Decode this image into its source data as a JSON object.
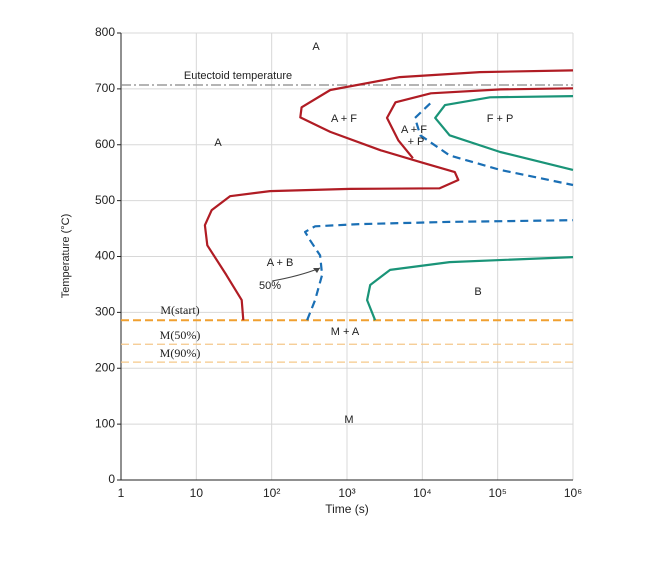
{
  "chart_data": {
    "type": "line",
    "x_scale": "log",
    "grid": true,
    "xlabel": "Time (s)",
    "ylabel": "Temperature (°C)",
    "xlim": [
      1,
      1000000
    ],
    "ylim": [
      0,
      800
    ],
    "xticks": [
      1,
      10,
      {
        "value": 100,
        "label": "10²"
      },
      {
        "value": 1000,
        "label": "10³"
      },
      {
        "value": 10000,
        "label": "10⁴"
      },
      {
        "value": 100000,
        "label": "10⁵"
      },
      {
        "value": 1000000,
        "label": "10⁶"
      }
    ],
    "yticks": [
      0,
      100,
      200,
      300,
      400,
      500,
      600,
      700,
      800
    ],
    "series": [
      {
        "color": "#b01c24",
        "dashed": false,
        "x": [
          42,
          40,
          25,
          14,
          13,
          16,
          28,
          95,
          1100,
          17000,
          30000,
          27000,
          9400,
          2800,
          600,
          240,
          250,
          600,
          5000,
          58000,
          1000000
        ],
        "y": [
          286,
          322,
          367,
          420,
          456,
          483,
          508,
          517,
          521,
          522,
          537,
          551,
          569,
          590,
          623,
          649,
          667,
          698,
          721,
          730,
          733
        ]
      },
      {
        "color": "#b01c24",
        "dashed": false,
        "x": [
          7500,
          4800,
          3400,
          4400,
          13000,
          110000,
          1000000
        ],
        "y": [
          576,
          608,
          648,
          676,
          692,
          699,
          701
        ]
      },
      {
        "color": "#1a6fb5",
        "dashed": true,
        "x": [
          12700,
          8000,
          9400,
          23000,
          108000,
          1000000
        ],
        "y": [
          674,
          648,
          617,
          581,
          555,
          528
        ]
      },
      {
        "color": "#1a6fb5",
        "dashed": true,
        "x": [
          295,
          377,
          467,
          440,
          324,
          278,
          377,
          1490,
          23000,
          1000000
        ],
        "y": [
          286,
          322,
          367,
          402,
          429,
          444,
          454,
          458,
          462,
          465
        ]
      },
      {
        "color": "#1a9478",
        "dashed": false,
        "x": [
          1000000,
          79000,
          20000,
          14800,
          23000,
          108000,
          1000000
        ],
        "y": [
          687,
          685,
          671,
          648,
          617,
          587,
          555
        ]
      },
      {
        "color": "#1a9478",
        "dashed": false,
        "x": [
          2360,
          1850,
          2030,
          3730,
          23000,
          1000000
        ],
        "y": [
          286,
          322,
          349,
          376,
          390,
          399
        ]
      }
    ],
    "hlines": [
      {
        "label": "Eutectoid temperature",
        "value": 707,
        "color": "#888888"
      },
      {
        "label": "M(start)",
        "value": 286,
        "color": "#f0a030"
      },
      {
        "label": "M(50%)",
        "value": 243,
        "color": "#f5c88a"
      },
      {
        "label": "M(90%)",
        "value": 211,
        "color": "#f5c88a"
      }
    ],
    "annotations": [
      "A",
      "A",
      "A + F",
      "A + F",
      "+ P",
      "F + P",
      "A + B",
      "50%",
      "B",
      "M + A",
      "M"
    ]
  }
}
